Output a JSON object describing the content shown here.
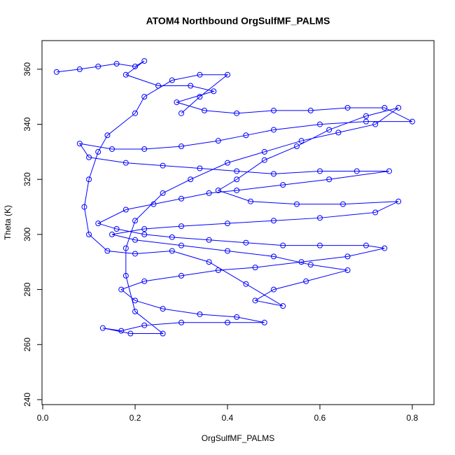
{
  "chart_data": {
    "type": "line",
    "markers": true,
    "color": "#0000ff",
    "title": "ATOM4 Northbound OrgSulfMF_PALMS",
    "x_label": "OrgSulfMF_PALMS",
    "y_label": "Theta (K)",
    "xlim": [
      -0.0016,
      0.847
    ],
    "ylim": [
      238.2,
      370.4
    ],
    "xticks": [
      {
        "value": 0,
        "label": "0.0"
      },
      0.2,
      0.4,
      0.6,
      0.8
    ],
    "yticks": [
      240,
      260,
      280,
      300,
      320,
      340,
      360
    ],
    "x": [
      0.03,
      0.08,
      0.12,
      0.16,
      0.2,
      0.22,
      0.18,
      0.25,
      0.32,
      0.37,
      0.29,
      0.35,
      0.42,
      0.5,
      0.58,
      0.66,
      0.74,
      0.8,
      0.7,
      0.6,
      0.5,
      0.44,
      0.38,
      0.3,
      0.22,
      0.15,
      0.08,
      0.1,
      0.18,
      0.26,
      0.34,
      0.42,
      0.5,
      0.6,
      0.68,
      0.75,
      0.62,
      0.52,
      0.42,
      0.36,
      0.3,
      0.24,
      0.18,
      0.12,
      0.16,
      0.22,
      0.28,
      0.36,
      0.44,
      0.52,
      0.6,
      0.7,
      0.74,
      0.66,
      0.56,
      0.46,
      0.38,
      0.3,
      0.22,
      0.17,
      0.2,
      0.26,
      0.34,
      0.42,
      0.48,
      0.4,
      0.3,
      0.22,
      0.17,
      0.13,
      0.19,
      0.26,
      0.2,
      0.18,
      0.18,
      0.2,
      0.26,
      0.32,
      0.4,
      0.48,
      0.56,
      0.64,
      0.72,
      0.77,
      0.7,
      0.62,
      0.55,
      0.48,
      0.42,
      0.38,
      0.45,
      0.55,
      0.65,
      0.77,
      0.72,
      0.6,
      0.5,
      0.4,
      0.3,
      0.22,
      0.15,
      0.2,
      0.3,
      0.4,
      0.5,
      0.58,
      0.66,
      0.57,
      0.5,
      0.46,
      0.52,
      0.44,
      0.36,
      0.28,
      0.2,
      0.14,
      0.1,
      0.09,
      0.1,
      0.12,
      0.14,
      0.2,
      0.22,
      0.28,
      0.34,
      0.4,
      0.34,
      0.3
    ],
    "y": [
      359,
      360,
      361,
      362,
      361,
      363,
      358,
      354,
      354,
      352,
      348,
      345,
      344,
      345,
      345,
      346,
      346,
      341,
      341,
      340,
      338,
      336,
      334,
      332,
      331,
      331,
      333,
      328,
      326,
      325,
      324,
      323,
      322,
      323,
      323,
      323,
      320,
      318,
      316,
      315,
      313,
      311,
      309,
      304,
      302,
      300,
      299,
      298,
      297,
      296,
      296,
      296,
      295,
      292,
      290,
      288,
      287,
      285,
      283,
      280,
      276,
      273,
      271,
      270,
      268,
      268,
      268,
      267,
      265,
      266,
      264,
      264,
      272,
      285,
      295,
      305,
      315,
      320,
      326,
      330,
      334,
      337,
      340,
      346,
      343,
      338,
      332,
      327,
      320,
      316,
      312,
      311,
      311,
      312,
      308,
      306,
      305,
      304,
      303,
      302,
      300,
      298,
      296,
      294,
      292,
      289,
      287,
      283,
      280,
      276,
      274,
      282,
      290,
      294,
      293,
      294,
      300,
      310,
      320,
      330,
      336,
      344,
      350,
      356,
      358,
      358,
      350,
      344
    ]
  }
}
